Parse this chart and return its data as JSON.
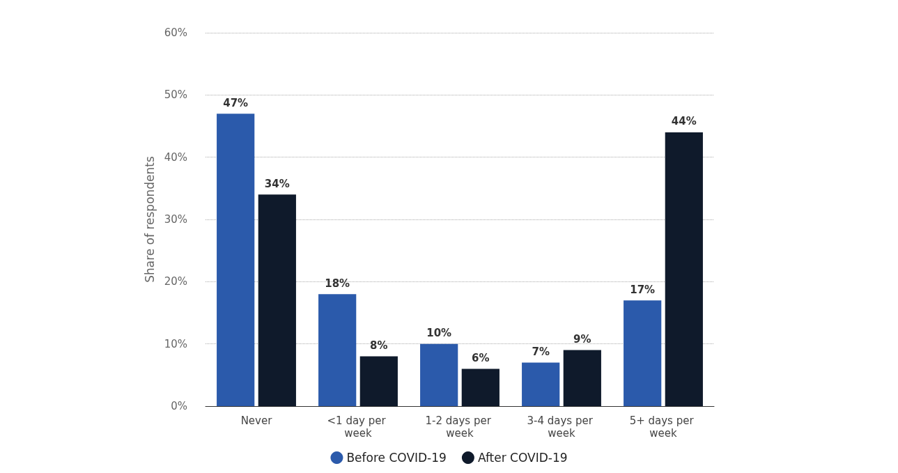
{
  "chart_data": {
    "type": "bar",
    "ylabel": "Share of respondents",
    "categories": [
      "Never",
      "<1 day per week",
      "1-2 days per week",
      "3-4 days per week",
      "5+ days per week"
    ],
    "series": [
      {
        "name": "Before COVID-19",
        "color": "#2b5aab",
        "values": [
          47,
          18,
          10,
          7,
          17
        ],
        "value_labels": [
          "47%",
          "18%",
          "10%",
          "7%",
          "17%"
        ]
      },
      {
        "name": "After COVID-19",
        "color": "#0f1a2b",
        "values": [
          34,
          8,
          6,
          9,
          44
        ],
        "value_labels": [
          "34%",
          "8%",
          "6%",
          "9%",
          "44%"
        ]
      }
    ],
    "ylim": [
      0,
      60
    ],
    "yticks": [
      {
        "value": 0,
        "label": "0%"
      },
      {
        "value": 10,
        "label": "10%"
      },
      {
        "value": 20,
        "label": "20%"
      },
      {
        "value": 30,
        "label": "30%"
      },
      {
        "value": 40,
        "label": "40%"
      },
      {
        "value": 50,
        "label": "50%"
      },
      {
        "value": 60,
        "label": "60%"
      }
    ],
    "grid": "y",
    "legend": "bottom"
  }
}
